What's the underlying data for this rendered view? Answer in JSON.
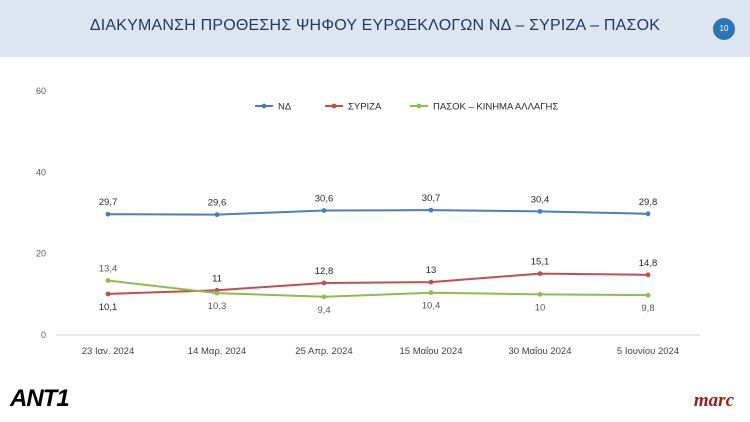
{
  "header": {
    "title": "ΔΙΑΚΥΜΑΝΣΗ ΠΡΟΘΕΣΗΣ ΨΗΦΟΥ ΕΥΡΩΕΚΛΟΓΩΝ ΝΔ – ΣΥΡΙΖΑ – ΠΑΣΟΚ",
    "page_number": "10"
  },
  "logos": {
    "left": "ANT1",
    "right": "marc"
  },
  "chart_data": {
    "type": "line",
    "categories": [
      "23 Ιαν. 2024",
      "14 Μαρ. 2024",
      "25 Απρ. 2024",
      "15 Μαΐου 2024",
      "30 Μαΐου 2024",
      "5 Ιουνίου 2024"
    ],
    "ylim": [
      0,
      60
    ],
    "yticks": [
      "0",
      "20",
      "40",
      "60"
    ],
    "grid": false,
    "legend_position": "top",
    "series": [
      {
        "name": "ΝΔ",
        "color": "#4a7ebb",
        "values": [
          29.7,
          29.6,
          30.6,
          30.7,
          30.4,
          29.8
        ],
        "labels": [
          "29,7",
          "29,6",
          "30,6",
          "30,7",
          "30,4",
          "29,8"
        ],
        "label_position": "above"
      },
      {
        "name": "ΣΥΡΙΖΑ",
        "color": "#c0504d",
        "values": [
          10.1,
          11,
          12.8,
          13,
          15.1,
          14.8
        ],
        "labels": [
          "10,1",
          "11",
          "12,8",
          "13",
          "15,1",
          "14,8"
        ],
        "label_position": "mixed"
      },
      {
        "name": "ΠΑΣΟΚ – ΚΙΝΗΜΑ ΑΛΛΑΓΗΣ",
        "color": "#8cbd4f",
        "values": [
          13.4,
          10.3,
          9.4,
          10.4,
          10,
          9.8
        ],
        "labels": [
          "13,4",
          "10,3",
          "9,4",
          "10,4",
          "10",
          "9,8"
        ],
        "label_position": "mixed"
      }
    ]
  }
}
